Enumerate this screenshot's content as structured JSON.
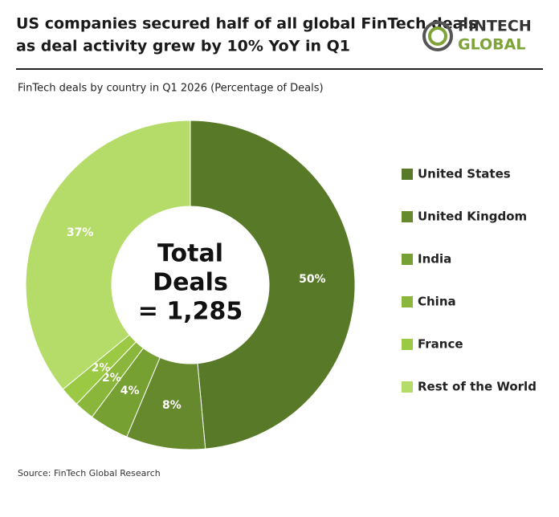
{
  "chart_data": {
    "type": "donut",
    "title": "US companies secured half of all global FinTech deals as deal activity grew by 10% YoY in Q1",
    "subtitle": "FinTech deals by country in Q1 2026 (Percentage of Deals)",
    "logo": [
      "FINTECH",
      "GLOBAL"
    ],
    "center_text": [
      "Total",
      "Deals",
      "= 1,285"
    ],
    "categories": [
      "United States",
      "United Kingdom",
      "India",
      "China",
      "France",
      "Rest of the World"
    ],
    "values": [
      50,
      8,
      4,
      2,
      2,
      37
    ],
    "value_labels": [
      "50%",
      "8%",
      "4%",
      "2%",
      "2%",
      "37%"
    ],
    "colors": [
      "#587a28",
      "#66892d",
      "#77a033",
      "#89b63b",
      "#9cc943",
      "#b5dc69"
    ],
    "source": "Source: FinTech Global Research"
  }
}
